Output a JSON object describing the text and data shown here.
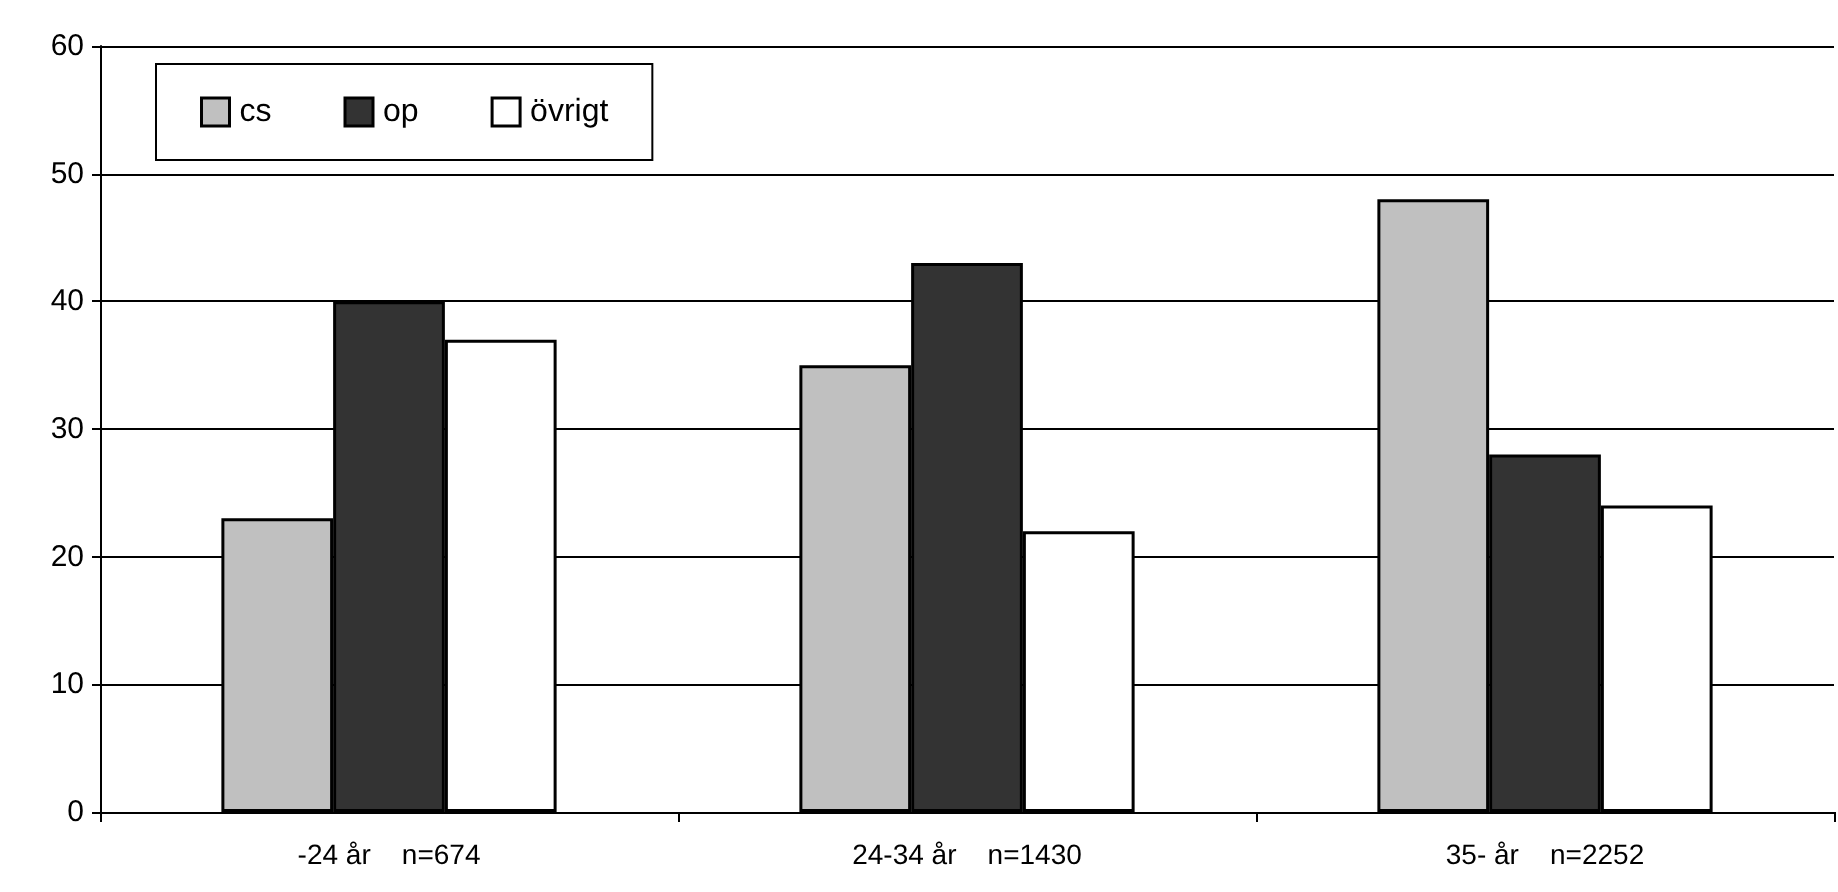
{
  "chart_data": {
    "type": "bar",
    "categories": [
      "-24 år    n=674",
      "24-34 år    n=1430",
      "35- år    n=2252"
    ],
    "series": [
      {
        "name": "cs",
        "color": "#c0c0c0",
        "values": [
          23,
          35,
          48
        ]
      },
      {
        "name": "op",
        "color": "#333333",
        "values": [
          40,
          43,
          28
        ]
      },
      {
        "name": "övrigt",
        "color": "#ffffff",
        "values": [
          37,
          22,
          24
        ]
      }
    ],
    "ylim": [
      0,
      60
    ],
    "yticks": [
      0,
      10,
      20,
      30,
      40,
      50,
      60
    ],
    "grid": "y",
    "legend": "top left"
  }
}
